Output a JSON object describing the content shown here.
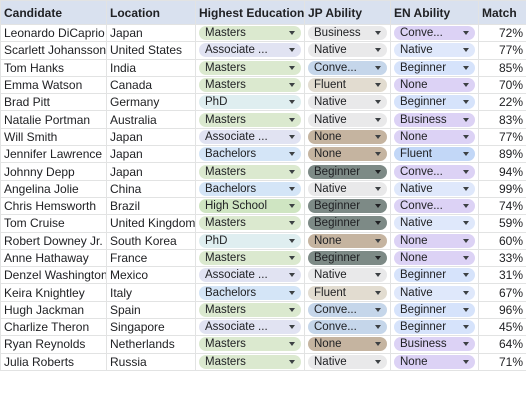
{
  "headers": [
    "Candidate",
    "Location",
    "Highest Education",
    "JP Ability",
    "EN Ability",
    "Match"
  ],
  "colors": {
    "Masters": "#dbe9cf",
    "Associate ...": "#e1e3f2",
    "Bachelors": "#d4e5f7",
    "PhD": "#dfeef0",
    "High School": "#cfe5c2",
    "Business": "#e9e9ea",
    "Native": "#e9e9ea",
    "Conve...": "#c5d6ea",
    "Fluent": "#e2dcd0",
    "None": "#c5b4a0",
    "Beginner": "#7d8a86",
    "EN:Conve...": "#dcd2f5",
    "EN:Native": "#dfe8fb",
    "EN:Beginner": "#d6e3fb",
    "EN:None": "#dcd2f5",
    "EN:Business": "#dcd2f5",
    "EN:Fluent": "#c2d7f7"
  },
  "rows": [
    {
      "name": "Leonardo DiCaprio",
      "location": "Japan",
      "education": "Masters",
      "jp": "Business",
      "en": "Conve...",
      "match": "72%"
    },
    {
      "name": "Scarlett Johansson",
      "location": "United States",
      "education": "Associate ...",
      "jp": "Native",
      "en": "Native",
      "match": "77%"
    },
    {
      "name": "Tom Hanks",
      "location": "India",
      "education": "Masters",
      "jp": "Conve...",
      "en": "Beginner",
      "match": "85%"
    },
    {
      "name": "Emma Watson",
      "location": "Canada",
      "education": "Masters",
      "jp": "Fluent",
      "en": "None",
      "match": "70%"
    },
    {
      "name": "Brad Pitt",
      "location": "Germany",
      "education": "PhD",
      "jp": "Native",
      "en": "Beginner",
      "match": "22%"
    },
    {
      "name": "Natalie Portman",
      "location": "Australia",
      "education": "Masters",
      "jp": "Native",
      "en": "Business",
      "match": "83%"
    },
    {
      "name": "Will Smith",
      "location": "Japan",
      "education": "Associate ...",
      "jp": "None",
      "en": "None",
      "match": "77%"
    },
    {
      "name": "Jennifer Lawrence",
      "location": "Japan",
      "education": "Bachelors",
      "jp": "None",
      "en": "Fluent",
      "match": "89%"
    },
    {
      "name": "Johnny Depp",
      "location": "Japan",
      "education": "Masters",
      "jp": "Beginner",
      "en": "Conve...",
      "match": "94%"
    },
    {
      "name": "Angelina Jolie",
      "location": "China",
      "education": "Bachelors",
      "jp": "Native",
      "en": "Native",
      "match": "99%"
    },
    {
      "name": "Chris Hemsworth",
      "location": "Brazil",
      "education": "High School",
      "jp": "Beginner",
      "en": "Conve...",
      "match": "74%"
    },
    {
      "name": "Tom Cruise",
      "location": "United Kingdom",
      "education": "Masters",
      "jp": "Beginner",
      "en": "Native",
      "match": "59%"
    },
    {
      "name": "Robert Downey Jr.",
      "location": "South Korea",
      "education": "PhD",
      "jp": "None",
      "en": "None",
      "match": "60%"
    },
    {
      "name": "Anne Hathaway",
      "location": "France",
      "education": "Masters",
      "jp": "Beginner",
      "en": "None",
      "match": "33%"
    },
    {
      "name": "Denzel Washington",
      "location": "Mexico",
      "education": "Associate ...",
      "jp": "Native",
      "en": "Beginner",
      "match": "31%"
    },
    {
      "name": "Keira Knightley",
      "location": "Italy",
      "education": "Bachelors",
      "jp": "Fluent",
      "en": "Native",
      "match": "67%"
    },
    {
      "name": "Hugh Jackman",
      "location": "Spain",
      "education": "Masters",
      "jp": "Conve...",
      "en": "Beginner",
      "match": "96%"
    },
    {
      "name": "Charlize Theron",
      "location": "Singapore",
      "education": "Associate ...",
      "jp": "Conve...",
      "en": "Beginner",
      "match": "45%"
    },
    {
      "name": "Ryan Reynolds",
      "location": "Netherlands",
      "education": "Masters",
      "jp": "None",
      "en": "Business",
      "match": "64%"
    },
    {
      "name": "Julia Roberts",
      "location": "Russia",
      "education": "Masters",
      "jp": "Native",
      "en": "None",
      "match": "71%"
    }
  ]
}
